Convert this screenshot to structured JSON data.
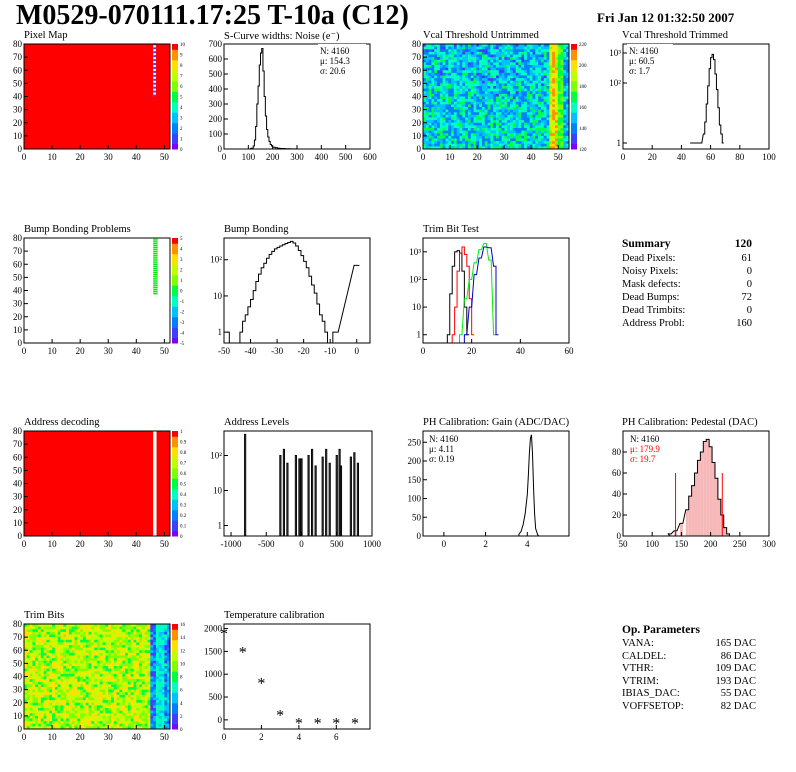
{
  "header": {
    "title": "M0529-070111.17:25 T-10a (C12)",
    "date": "Fri Jan 12 01:32:50 2007"
  },
  "panels": {
    "pixel_map": {
      "title": "Pixel Map",
      "x_ticks": [
        "0",
        "10",
        "20",
        "30",
        "40",
        "50"
      ],
      "y_ticks": [
        "0",
        "10",
        "20",
        "30",
        "40",
        "50",
        "60",
        "70",
        "80"
      ],
      "z_ticks": [
        "0",
        "1",
        "2",
        "3",
        "4",
        "5",
        "6",
        "7",
        "8",
        "9",
        "10"
      ]
    },
    "noise": {
      "title": "S-Curve widths: Noise (e⁻)",
      "x_ticks": [
        "0",
        "100",
        "200",
        "300",
        "400",
        "500",
        "600"
      ],
      "y_ticks": [
        "0",
        "100",
        "200",
        "300",
        "400",
        "500",
        "600",
        "700"
      ],
      "stats": [
        "N: 4160",
        "μ: 154.3",
        "σ: 20.6"
      ]
    },
    "vcal_untrimmed": {
      "title": "Vcal Threshold Untrimmed",
      "x_ticks": [
        "0",
        "10",
        "20",
        "30",
        "40",
        "50"
      ],
      "y_ticks": [
        "0",
        "10",
        "20",
        "30",
        "40",
        "50",
        "60",
        "70",
        "80"
      ],
      "z_ticks": [
        "120",
        "140",
        "160",
        "180",
        "200",
        "220"
      ]
    },
    "vcal_trimmed": {
      "title": "Vcal Threshold Trimmed",
      "x_ticks": [
        "0",
        "20",
        "40",
        "60",
        "80",
        "100"
      ],
      "y_ticks": [
        "1",
        "10²",
        "10³"
      ],
      "stats": [
        "N: 4160",
        "μ: 60.5",
        "σ:   1.7"
      ]
    },
    "bump_problems": {
      "title": "Bump Bonding Problems",
      "x_ticks": [
        "0",
        "10",
        "20",
        "30",
        "40",
        "50"
      ],
      "y_ticks": [
        "0",
        "10",
        "20",
        "30",
        "40",
        "50",
        "60",
        "70",
        "80"
      ],
      "z_ticks": [
        "-5",
        "-4",
        "-3",
        "-2",
        "-1",
        "0",
        "1",
        "2",
        "3",
        "4",
        "5"
      ]
    },
    "bump_bonding": {
      "title": "Bump Bonding",
      "x_ticks": [
        "-50",
        "-40",
        "-30",
        "-20",
        "-10",
        "0"
      ],
      "y_ticks": [
        "1",
        "10",
        "10²"
      ]
    },
    "trim_bit_test": {
      "title": "Trim Bit Test",
      "x_ticks": [
        "0",
        "20",
        "40",
        "60"
      ],
      "y_ticks": [
        "1",
        "10",
        "10²",
        "10³"
      ]
    },
    "address_decoding": {
      "title": "Address decoding",
      "x_ticks": [
        "0",
        "10",
        "20",
        "30",
        "40",
        "50"
      ],
      "y_ticks": [
        "0",
        "10",
        "20",
        "30",
        "40",
        "50",
        "60",
        "70",
        "80"
      ],
      "z_ticks": [
        "0",
        "0.1",
        "0.2",
        "0.3",
        "0.4",
        "0.5",
        "0.6",
        "0.7",
        "0.8",
        "0.9",
        "1"
      ]
    },
    "address_levels": {
      "title": "Address Levels",
      "x_ticks": [
        "-1000",
        "-500",
        "0",
        "500",
        "1000"
      ],
      "y_ticks": [
        "1",
        "10",
        "10²"
      ]
    },
    "ph_gain": {
      "title": "PH Calibration: Gain (ADC/DAC)",
      "x_ticks": [
        "0",
        "2",
        "4"
      ],
      "y_ticks": [
        "0",
        "50",
        "100",
        "150",
        "200",
        "250"
      ],
      "stats": [
        "N: 4160",
        "μ: 4.11",
        "σ: 0.19"
      ]
    },
    "ph_pedestal": {
      "title": "PH Calibration: Pedestal (DAC)",
      "x_ticks": [
        "50",
        "100",
        "150",
        "200",
        "250",
        "300"
      ],
      "y_ticks": [
        "0",
        "20",
        "40",
        "60",
        "80"
      ],
      "stats": [
        "N: 4160",
        "μ: 179.9",
        "σ: 19.7"
      ]
    },
    "trim_bits": {
      "title": "Trim Bits",
      "x_ticks": [
        "0",
        "10",
        "20",
        "30",
        "40",
        "50"
      ],
      "y_ticks": [
        "0",
        "10",
        "20",
        "30",
        "40",
        "50",
        "60",
        "70",
        "80"
      ],
      "z_ticks": [
        "0",
        "2",
        "4",
        "6",
        "8",
        "10",
        "12",
        "14",
        "16"
      ]
    },
    "temperature": {
      "title": "Temperature calibration",
      "x_ticks": [
        "0",
        "2",
        "4",
        "6"
      ],
      "y_ticks": [
        "0",
        "500",
        "1000",
        "1500",
        "2000"
      ]
    }
  },
  "summary": {
    "title": "Summary",
    "total": "120",
    "rows": [
      {
        "label": "Dead Pixels:",
        "value": "61"
      },
      {
        "label": "Noisy Pixels:",
        "value": "0"
      },
      {
        "label": "Mask defects:",
        "value": "0"
      },
      {
        "label": "Dead Bumps:",
        "value": "72"
      },
      {
        "label": "Dead Trimbits:",
        "value": "0"
      },
      {
        "label": "Address Probl:",
        "value": "160"
      }
    ]
  },
  "op_params": {
    "title": "Op. Parameters",
    "rows": [
      {
        "label": "VANA:",
        "value": "165 DAC"
      },
      {
        "label": "CALDEL:",
        "value": "86 DAC"
      },
      {
        "label": "VTHR:",
        "value": "109 DAC"
      },
      {
        "label": "VTRIM:",
        "value": "193 DAC"
      },
      {
        "label": "IBIAS_DAC:",
        "value": "55 DAC"
      },
      {
        "label": "VOFFSETOP:",
        "value": "82 DAC"
      }
    ]
  },
  "colors": {
    "red": "#ff0000",
    "green": "#00ee00",
    "blue": "#0000cc",
    "black": "#000000",
    "palette": [
      "#7f00ff",
      "#3f3fff",
      "#0080ff",
      "#00c0ff",
      "#00ffc0",
      "#00ff40",
      "#80ff00",
      "#c0ff00",
      "#ffe000",
      "#ff9000",
      "#ff0000"
    ]
  },
  "chart_data": [
    {
      "type": "heatmap",
      "title": "Pixel Map",
      "xlim": [
        0,
        52
      ],
      "ylim": [
        0,
        80
      ],
      "zlim": [
        0,
        10
      ],
      "description_values": {
        "filled_value": 10,
        "dead_column": 46,
        "dead_rows_start": 40
      }
    },
    {
      "type": "bar",
      "title": "S-Curve widths: Noise (e⁻)",
      "xlim": [
        0,
        600
      ],
      "ylim": [
        0,
        700
      ],
      "x": [
        110,
        120,
        125,
        130,
        135,
        140,
        145,
        150,
        155,
        160,
        165,
        170,
        175,
        180,
        185,
        190,
        195,
        200,
        210,
        220,
        230,
        250,
        270,
        290,
        300
      ],
      "values": [
        5,
        20,
        60,
        150,
        300,
        420,
        560,
        640,
        670,
        520,
        350,
        220,
        130,
        80,
        50,
        30,
        20,
        12,
        8,
        5,
        3,
        2,
        1,
        1,
        0
      ]
    },
    {
      "type": "heatmap",
      "title": "Vcal Threshold Untrimmed",
      "xlim": [
        0,
        52
      ],
      "ylim": [
        0,
        80
      ],
      "zlim": [
        110,
        230
      ]
    },
    {
      "type": "bar",
      "title": "Vcal Threshold Trimmed",
      "xlim": [
        0,
        100
      ],
      "log_y": true,
      "x": [
        46,
        53,
        55,
        56,
        57,
        58,
        59,
        60,
        61,
        62,
        63,
        64,
        65,
        66,
        67,
        68
      ],
      "values": [
        1,
        1,
        2,
        5,
        20,
        80,
        300,
        700,
        900,
        600,
        200,
        60,
        15,
        4,
        2,
        1
      ]
    },
    {
      "type": "heatmap",
      "title": "Bump Bonding Problems",
      "xlim": [
        0,
        52
      ],
      "ylim": [
        0,
        80
      ],
      "zlim": [
        -5,
        5
      ]
    },
    {
      "type": "bar",
      "title": "Bump Bonding",
      "xlim": [
        -50,
        5
      ],
      "log_y": true,
      "x": [
        -49,
        -48,
        -47,
        -46,
        -45,
        -44,
        -43,
        -42,
        -41,
        -40,
        -39,
        -38,
        -37,
        -36,
        -35,
        -34,
        -33,
        -32,
        -31,
        -30,
        -29,
        -28,
        -27,
        -26,
        -25,
        -24,
        -23,
        -22,
        -21,
        -20,
        -19,
        -18,
        -17,
        -16,
        -15,
        -14,
        -13,
        -12,
        -11,
        -10,
        -9,
        -8,
        -1,
        0
      ],
      "values": [
        1,
        0,
        0,
        0,
        0,
        1,
        2,
        3,
        5,
        8,
        14,
        25,
        40,
        60,
        80,
        110,
        140,
        170,
        200,
        220,
        240,
        260,
        280,
        300,
        320,
        290,
        240,
        180,
        130,
        90,
        60,
        35,
        20,
        12,
        6,
        3,
        2,
        1,
        0,
        0,
        1,
        1,
        70,
        70
      ]
    },
    {
      "type": "line",
      "title": "Trim Bit Test",
      "xlim": [
        0,
        60
      ],
      "log_y": true,
      "series": [
        {
          "name": "black",
          "x": [
            10,
            11,
            12,
            13,
            14,
            15,
            16,
            17,
            18
          ],
          "values": [
            1,
            30,
            300,
            1000,
            1100,
            900,
            200,
            10,
            1
          ]
        },
        {
          "name": "red",
          "x": [
            12,
            13,
            14,
            15,
            16,
            17,
            18,
            19,
            20
          ],
          "values": [
            1,
            10,
            200,
            900,
            1500,
            800,
            300,
            20,
            1
          ]
        },
        {
          "name": "green",
          "x": [
            15,
            17,
            19,
            21,
            23,
            25,
            27,
            29
          ],
          "values": [
            1,
            20,
            100,
            400,
            1200,
            2000,
            500,
            1
          ]
        },
        {
          "name": "blue",
          "x": [
            17,
            19,
            21,
            23,
            25,
            27,
            29,
            30
          ],
          "values": [
            1,
            10,
            150,
            600,
            1500,
            1400,
            300,
            1
          ]
        }
      ]
    },
    {
      "type": "heatmap",
      "title": "Address decoding",
      "xlim": [
        0,
        52
      ],
      "ylim": [
        0,
        80
      ],
      "zlim": [
        0,
        1
      ]
    },
    {
      "type": "bar",
      "title": "Address Levels",
      "xlim": [
        -1000,
        1000
      ],
      "log_y": true,
      "x": [
        -800,
        -300,
        -250,
        -200,
        -80,
        -30,
        0,
        100,
        150,
        200,
        300,
        350,
        400,
        500,
        540,
        560,
        700,
        750,
        800
      ],
      "values": [
        400,
        100,
        150,
        60,
        100,
        80,
        80,
        100,
        150,
        50,
        90,
        150,
        60,
        100,
        150,
        50,
        90,
        120,
        60
      ]
    },
    {
      "type": "bar",
      "title": "PH Calibration: Gain (ADC/DAC)",
      "xlim": [
        -1,
        6
      ],
      "ylim": [
        0,
        280
      ],
      "x": [
        3.6,
        3.7,
        3.8,
        3.9,
        4.0,
        4.05,
        4.1,
        4.15,
        4.2,
        4.25,
        4.3,
        4.35,
        4.4,
        4.5
      ],
      "values": [
        5,
        12,
        30,
        60,
        110,
        160,
        220,
        260,
        270,
        220,
        130,
        60,
        20,
        3
      ]
    },
    {
      "type": "bar",
      "title": "PH Calibration: Pedestal (DAC)",
      "xlim": [
        50,
        300
      ],
      "ylim": [
        0,
        100
      ],
      "x": [
        130,
        140,
        150,
        160,
        165,
        170,
        175,
        180,
        185,
        190,
        195,
        200,
        205,
        210,
        215,
        220,
        225,
        230
      ],
      "values": [
        2,
        5,
        12,
        25,
        38,
        48,
        60,
        72,
        80,
        90,
        92,
        85,
        70,
        55,
        35,
        20,
        8,
        2
      ]
    },
    {
      "type": "heatmap",
      "title": "Trim Bits",
      "xlim": [
        0,
        52
      ],
      "ylim": [
        0,
        80
      ],
      "zlim": [
        0,
        16
      ]
    },
    {
      "type": "scatter",
      "title": "Temperature calibration",
      "xlim": [
        0,
        8
      ],
      "ylim": [
        -200,
        2100
      ],
      "x": [
        0,
        1,
        2,
        3,
        4,
        5,
        6,
        7
      ],
      "values": [
        1900,
        1500,
        820,
        120,
        -60,
        -60,
        -60,
        -60
      ]
    }
  ]
}
